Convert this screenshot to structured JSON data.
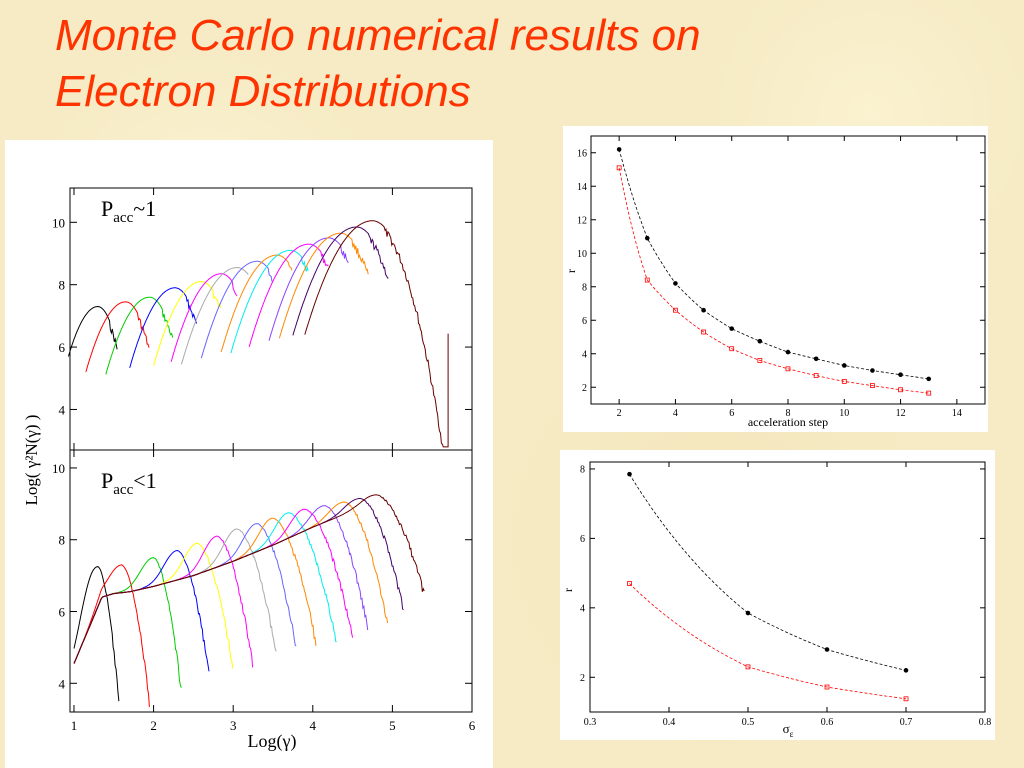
{
  "slide": {
    "title_line1": "Monte Carlo numerical results on",
    "title_line2": "Electron Distributions"
  },
  "colors": {
    "title": "#ff3300",
    "series_black": "#000000",
    "series_red": "#ff0000"
  },
  "chart_data": [
    {
      "id": "spectra",
      "type": "line",
      "xlabel": "Log(γ)",
      "ylabel": "Log( γ²N(γ) )",
      "xlim": [
        0.95,
        6.0
      ],
      "xticks": [
        "1",
        "2",
        "3",
        "4",
        "5",
        "6"
      ],
      "curve_colors": [
        "#000000",
        "#ff0000",
        "#00cc00",
        "#0000ff",
        "#ffff00",
        "#ff00ff",
        "#aaaaaa",
        "#6666ff",
        "#ff8800",
        "#00eeee",
        "#ff00ff",
        "#8844ff",
        "#ff8800",
        "#440066",
        "#660000"
      ],
      "panels": [
        {
          "label_main": "P",
          "label_sub": "acc",
          "label_rest": "~1",
          "ylim": [
            2.7,
            11.1
          ],
          "yticks": [
            "4",
            "6",
            "8",
            "10"
          ],
          "peaks_x": [
            1.3,
            1.65,
            1.95,
            2.27,
            2.6,
            2.85,
            3.05,
            3.3,
            3.55,
            3.72,
            3.95,
            4.2,
            4.35,
            4.55,
            4.75
          ],
          "peaks_y": [
            7.3,
            7.45,
            7.6,
            7.9,
            8.1,
            8.35,
            8.55,
            8.75,
            8.95,
            9.1,
            9.3,
            9.5,
            9.65,
            9.85,
            10.05
          ],
          "widths": [
            0.22,
            0.35,
            0.4,
            0.42,
            0.45,
            0.48,
            0.55,
            0.55,
            0.55,
            0.6,
            0.6,
            0.6,
            0.62,
            0.65,
            0.7
          ],
          "cutoff_x": [
            1.55,
            1.95,
            2.25,
            2.55,
            2.85,
            3.05,
            3.2,
            3.5,
            3.75,
            3.95,
            4.2,
            4.45,
            4.7,
            4.95,
            5.7
          ],
          "tail_start": [
            4.1,
            3.4,
            3.35,
            3.5,
            3.45,
            3.6,
            3.75,
            3.9,
            4.2,
            4.4,
            4.7,
            4.8,
            4.8,
            5.0,
            5.5
          ]
        },
        {
          "label_main": "P",
          "label_sub": "acc",
          "label_rest": "<1",
          "ylim": [
            3.2,
            10.5
          ],
          "yticks": [
            "4",
            "6",
            "8",
            "10"
          ],
          "envelope_x": [
            1.0,
            1.2,
            1.35,
            1.5,
            1.7,
            2.0,
            2.5,
            3.0,
            3.5,
            4.0,
            4.5,
            4.8,
            5.0,
            5.3,
            5.7
          ],
          "envelope_y": [
            4.55,
            5.6,
            6.4,
            6.5,
            6.55,
            6.7,
            7.0,
            7.4,
            7.85,
            8.35,
            8.8,
            9.0,
            8.9,
            8.3,
            7.2
          ],
          "peaks_x": [
            1.3,
            1.6,
            2.0,
            2.3,
            2.55,
            2.8,
            3.05,
            3.3,
            3.5,
            3.7,
            3.9,
            4.15,
            4.4,
            4.6,
            4.8
          ],
          "peaks_y": [
            7.25,
            7.3,
            7.5,
            7.7,
            7.9,
            8.1,
            8.3,
            8.45,
            8.6,
            8.75,
            8.85,
            8.95,
            9.05,
            9.15,
            9.25
          ],
          "cutoff_x": [
            1.57,
            1.95,
            2.35,
            2.7,
            3.0,
            3.25,
            3.55,
            3.8,
            4.05,
            4.3,
            4.5,
            4.7,
            4.95,
            5.15,
            5.4
          ],
          "cutoff_y": [
            3.4,
            3.5,
            3.85,
            4.3,
            4.5,
            4.55,
            4.8,
            5.0,
            5.1,
            5.25,
            5.4,
            5.55,
            5.7,
            6.05,
            6.6
          ]
        }
      ]
    },
    {
      "id": "r_vs_step",
      "type": "scatter",
      "xlabel": "acceleration step",
      "ylabel": "r",
      "xlim": [
        1,
        15
      ],
      "ylim": [
        1,
        17
      ],
      "xticks": [
        2,
        4,
        6,
        8,
        10,
        12,
        14
      ],
      "yticks": [
        2,
        4,
        6,
        8,
        10,
        12,
        14,
        16
      ],
      "series": [
        {
          "marker": "filled-circle",
          "color": "#000000",
          "x": [
            2,
            3,
            4,
            5,
            6,
            7,
            8,
            9,
            10,
            11,
            12,
            13
          ],
          "y": [
            16.2,
            10.9,
            8.2,
            6.6,
            5.5,
            4.75,
            4.1,
            3.7,
            3.3,
            3.0,
            2.75,
            2.5
          ]
        },
        {
          "marker": "open-square",
          "color": "#ff0000",
          "x": [
            2,
            3,
            4,
            5,
            6,
            7,
            8,
            9,
            10,
            11,
            12,
            13
          ],
          "y": [
            15.1,
            8.4,
            6.6,
            5.3,
            4.3,
            3.6,
            3.1,
            2.7,
            2.35,
            2.1,
            1.85,
            1.65
          ]
        }
      ]
    },
    {
      "id": "r_vs_sigma",
      "type": "scatter",
      "xlabel_main": "σ",
      "xlabel_sub": "ε",
      "ylabel": "r",
      "xlim": [
        0.3,
        0.8
      ],
      "ylim": [
        1,
        8.2
      ],
      "xticks": [
        "0.3",
        "0.4",
        "0.5",
        "0.6",
        "0.7",
        "0.8"
      ],
      "yticks": [
        "2",
        "4",
        "6",
        "8"
      ],
      "series": [
        {
          "marker": "filled-circle",
          "color": "#000000",
          "x": [
            0.35,
            0.5,
            0.6,
            0.7
          ],
          "y": [
            7.85,
            3.85,
            2.8,
            2.2
          ]
        },
        {
          "marker": "open-square",
          "color": "#ff0000",
          "x": [
            0.35,
            0.5,
            0.6,
            0.7
          ],
          "y": [
            4.7,
            2.3,
            1.72,
            1.38
          ]
        }
      ]
    }
  ]
}
